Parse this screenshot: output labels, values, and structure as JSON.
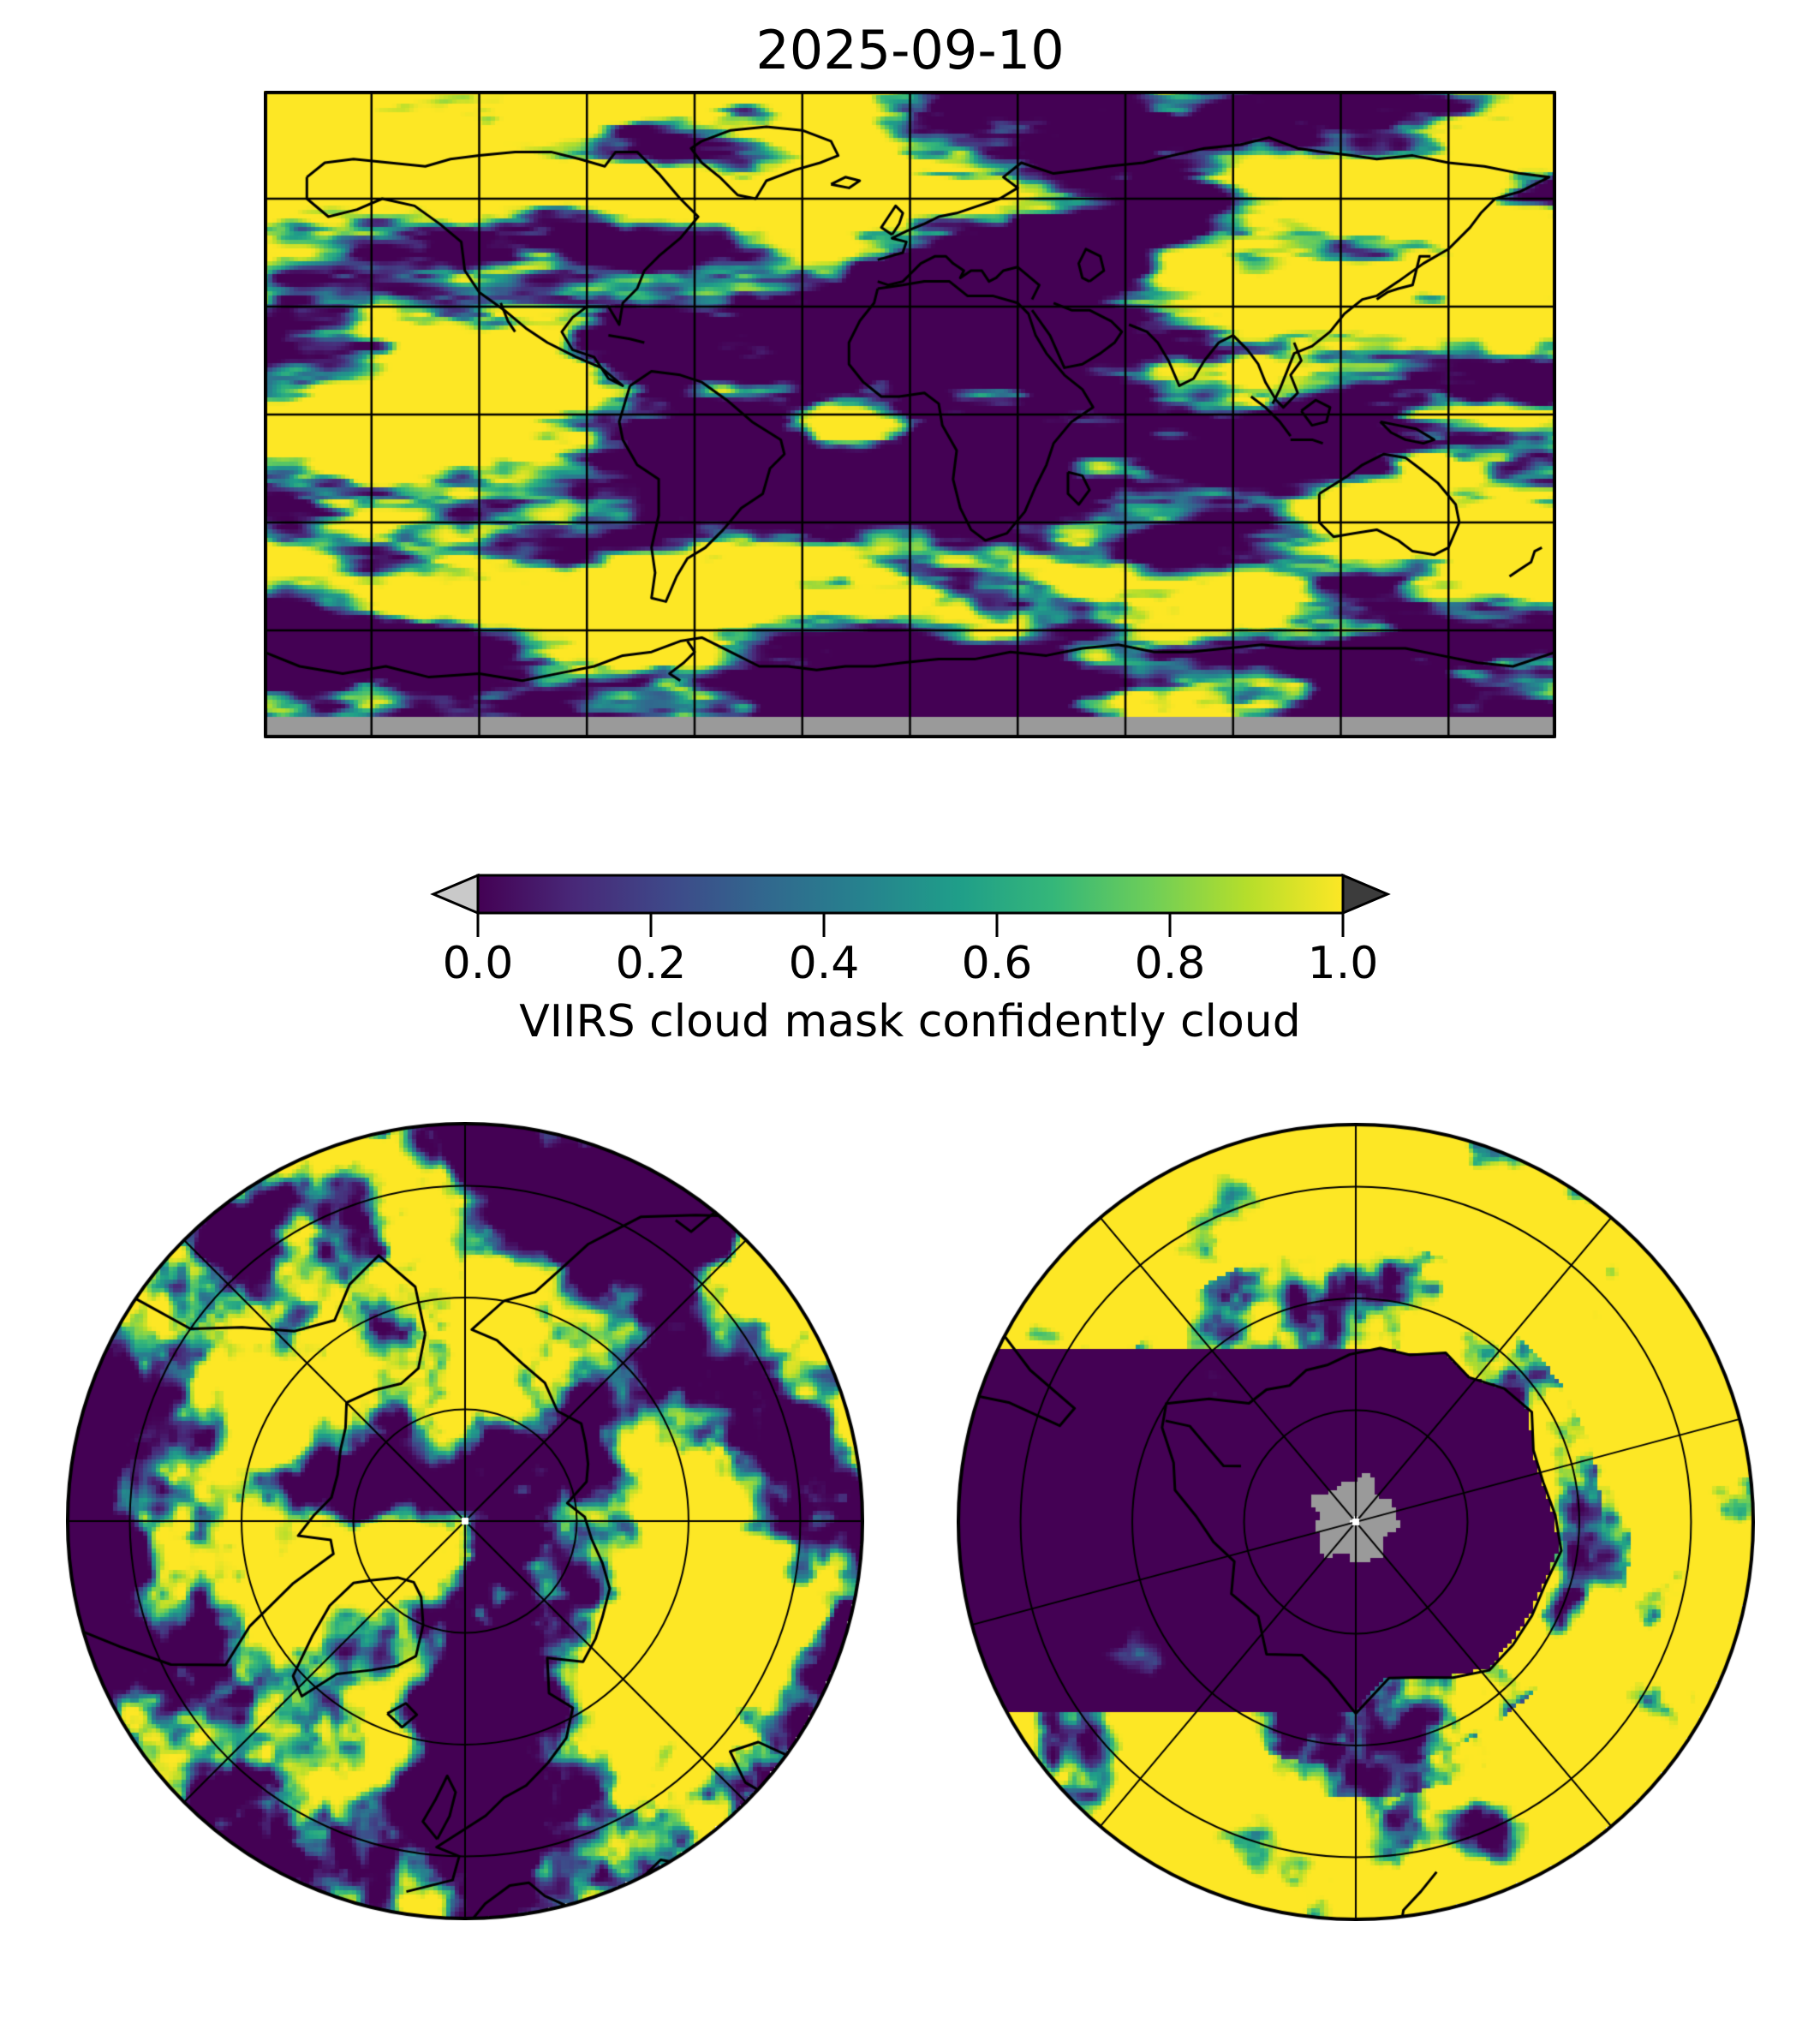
{
  "figure": {
    "title": "2025-09-10",
    "background_color": "#ffffff"
  },
  "colorbar": {
    "label": "VIIRS cloud mask confidently cloud",
    "ticks": [
      "0.0",
      "0.2",
      "0.4",
      "0.6",
      "0.8",
      "1.0"
    ],
    "orientation": "horizontal",
    "colormap": "viridis",
    "under_arrow_color": "#c9c9c9",
    "over_arrow_color": "#3c3c3c",
    "missing_data_color": "#9a9a9a",
    "outline_color": "#000000",
    "viridis_stops": [
      "#440154",
      "#482878",
      "#3e4989",
      "#31688e",
      "#26828e",
      "#1f9e89",
      "#35b779",
      "#6ece58",
      "#b5de2b",
      "#fde725"
    ]
  },
  "chart_data": {
    "type": "heatmap",
    "title": "2025-09-10",
    "value_label": "VIIRS cloud mask confidently cloud",
    "value_range": [
      0.0,
      1.0
    ],
    "colorbar_ticks": [
      0.0,
      0.2,
      0.4,
      0.6,
      0.8,
      1.0
    ],
    "colormap": "viridis",
    "legend_position": "horizontal colorbar below global map, with under/over extension arrows",
    "grid": "on",
    "panels": [
      {
        "name": "global-map",
        "projection": "equirectangular (global, 180W-180E, 90N-90S)",
        "graticule_spacing_deg": 30,
        "features": "viridis cloud-mask field with black coastlines; gray band of missing data along the southernmost edge"
      },
      {
        "name": "north-polar-map",
        "projection": "north polar azimuthal",
        "graticule": "3 concentric latitude circles and meridian spokes every 45 degrees",
        "features": "viridis cloud-mask field with black Arctic coastlines"
      },
      {
        "name": "south-polar-map",
        "projection": "south polar azimuthal",
        "graticule": "3 concentric latitude circles and meridian spokes every 45 degrees",
        "features": "viridis cloud-mask field, dark Antarctica interior with black coastline, gray circle of missing data over the pole"
      }
    ]
  }
}
